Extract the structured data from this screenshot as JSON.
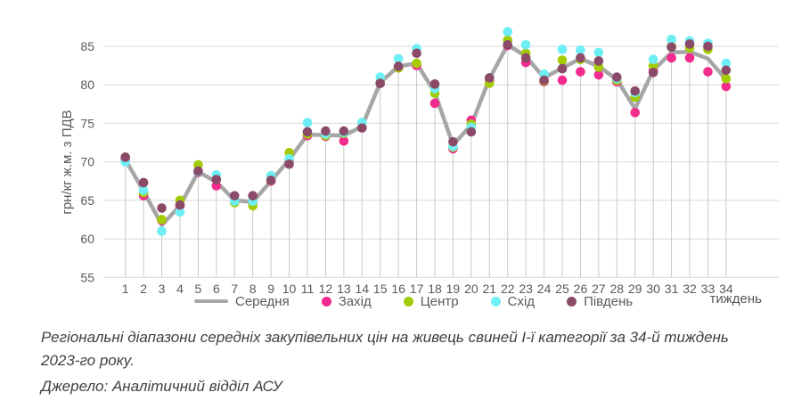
{
  "chart": {
    "y_axis_label": "грн/кг ж.м. з ПДВ",
    "x_axis_label": "тиждень",
    "colors": {
      "grid": "#d9d9d9",
      "drop_line": "#c9c9c9",
      "axis_text": "#595959",
      "average_line": "#a6a6a6"
    }
  },
  "chart_data": {
    "type": "line",
    "title": "",
    "xlabel": "тиждень",
    "ylabel": "грн/кг ж.м. з ПДВ",
    "ylim": [
      55,
      87.5
    ],
    "yticks": [
      55,
      60,
      65,
      70,
      75,
      80,
      85
    ],
    "grid": true,
    "legend_position": "bottom",
    "x": [
      1,
      2,
      3,
      4,
      5,
      6,
      7,
      8,
      9,
      10,
      11,
      12,
      13,
      14,
      15,
      16,
      17,
      18,
      19,
      20,
      21,
      22,
      23,
      24,
      25,
      26,
      27,
      28,
      29,
      30,
      31,
      32,
      33,
      34
    ],
    "series": [
      {
        "name": "Середня",
        "key": "average",
        "style": "line",
        "color": "#a6a6a6",
        "values": [
          70.3,
          66.2,
          61.8,
          64.3,
          68.7,
          67.4,
          65.0,
          64.8,
          67.5,
          70.3,
          73.5,
          73.5,
          73.4,
          74.6,
          80.3,
          82.4,
          82.8,
          79.0,
          72.2,
          74.8,
          80.8,
          85.2,
          83.7,
          80.9,
          82.2,
          83.4,
          82.4,
          80.7,
          76.9,
          81.9,
          84.2,
          84.3,
          83.4,
          80.7
        ]
      },
      {
        "name": "Захід",
        "key": "west",
        "style": "scatter",
        "color": "#f22c8e",
        "values": [
          70.2,
          65.6,
          62.4,
          64.3,
          68.6,
          66.9,
          64.8,
          64.8,
          67.5,
          70.2,
          73.4,
          73.3,
          72.7,
          74.5,
          80.2,
          82.2,
          82.5,
          77.6,
          71.7,
          75.4,
          80.5,
          85.1,
          82.9,
          80.4,
          80.6,
          81.7,
          81.3,
          80.4,
          76.4,
          81.8,
          83.5,
          83.5,
          81.7,
          79.8
        ]
      },
      {
        "name": "Центр",
        "key": "center",
        "style": "scatter",
        "color": "#a3cc04",
        "values": [
          70.6,
          66.0,
          62.5,
          65.0,
          69.6,
          67.7,
          64.7,
          64.3,
          67.6,
          71.2,
          73.6,
          73.4,
          73.7,
          74.5,
          80.3,
          82.2,
          82.8,
          78.9,
          71.9,
          74.9,
          80.2,
          85.8,
          84.1,
          80.5,
          83.2,
          83.3,
          82.3,
          80.6,
          78.4,
          82.5,
          85.0,
          84.8,
          84.6,
          80.8
        ]
      },
      {
        "name": "Схід",
        "key": "east",
        "style": "scatter",
        "color": "#6eeff5",
        "values": [
          70.0,
          66.3,
          61.0,
          63.5,
          68.7,
          68.3,
          64.9,
          64.9,
          68.2,
          70.4,
          75.1,
          73.6,
          73.8,
          75.1,
          81.0,
          83.4,
          84.7,
          79.5,
          72.0,
          74.5,
          80.9,
          86.9,
          85.2,
          81.4,
          84.6,
          84.5,
          84.2,
          80.8,
          79.0,
          83.3,
          85.9,
          85.7,
          85.4,
          82.8
        ]
      },
      {
        "name": "Південь",
        "key": "south",
        "style": "scatter",
        "color": "#8b4a67",
        "values": [
          70.6,
          67.3,
          64.0,
          64.4,
          68.8,
          67.7,
          65.6,
          65.6,
          67.6,
          69.7,
          73.9,
          74.0,
          74.0,
          74.4,
          80.2,
          82.4,
          84.1,
          80.1,
          72.6,
          73.9,
          80.9,
          85.2,
          83.5,
          80.6,
          82.1,
          83.5,
          83.1,
          81.0,
          79.2,
          81.6,
          84.9,
          85.3,
          85.0,
          81.9
        ]
      }
    ]
  },
  "caption": {
    "text": "Регіональні діапазони середніх закупівельних цін на живець свиней І-ї категорії за 34-й тиждень 2023-го року.",
    "source": "Джерело: Аналітичний відділ АСУ"
  }
}
